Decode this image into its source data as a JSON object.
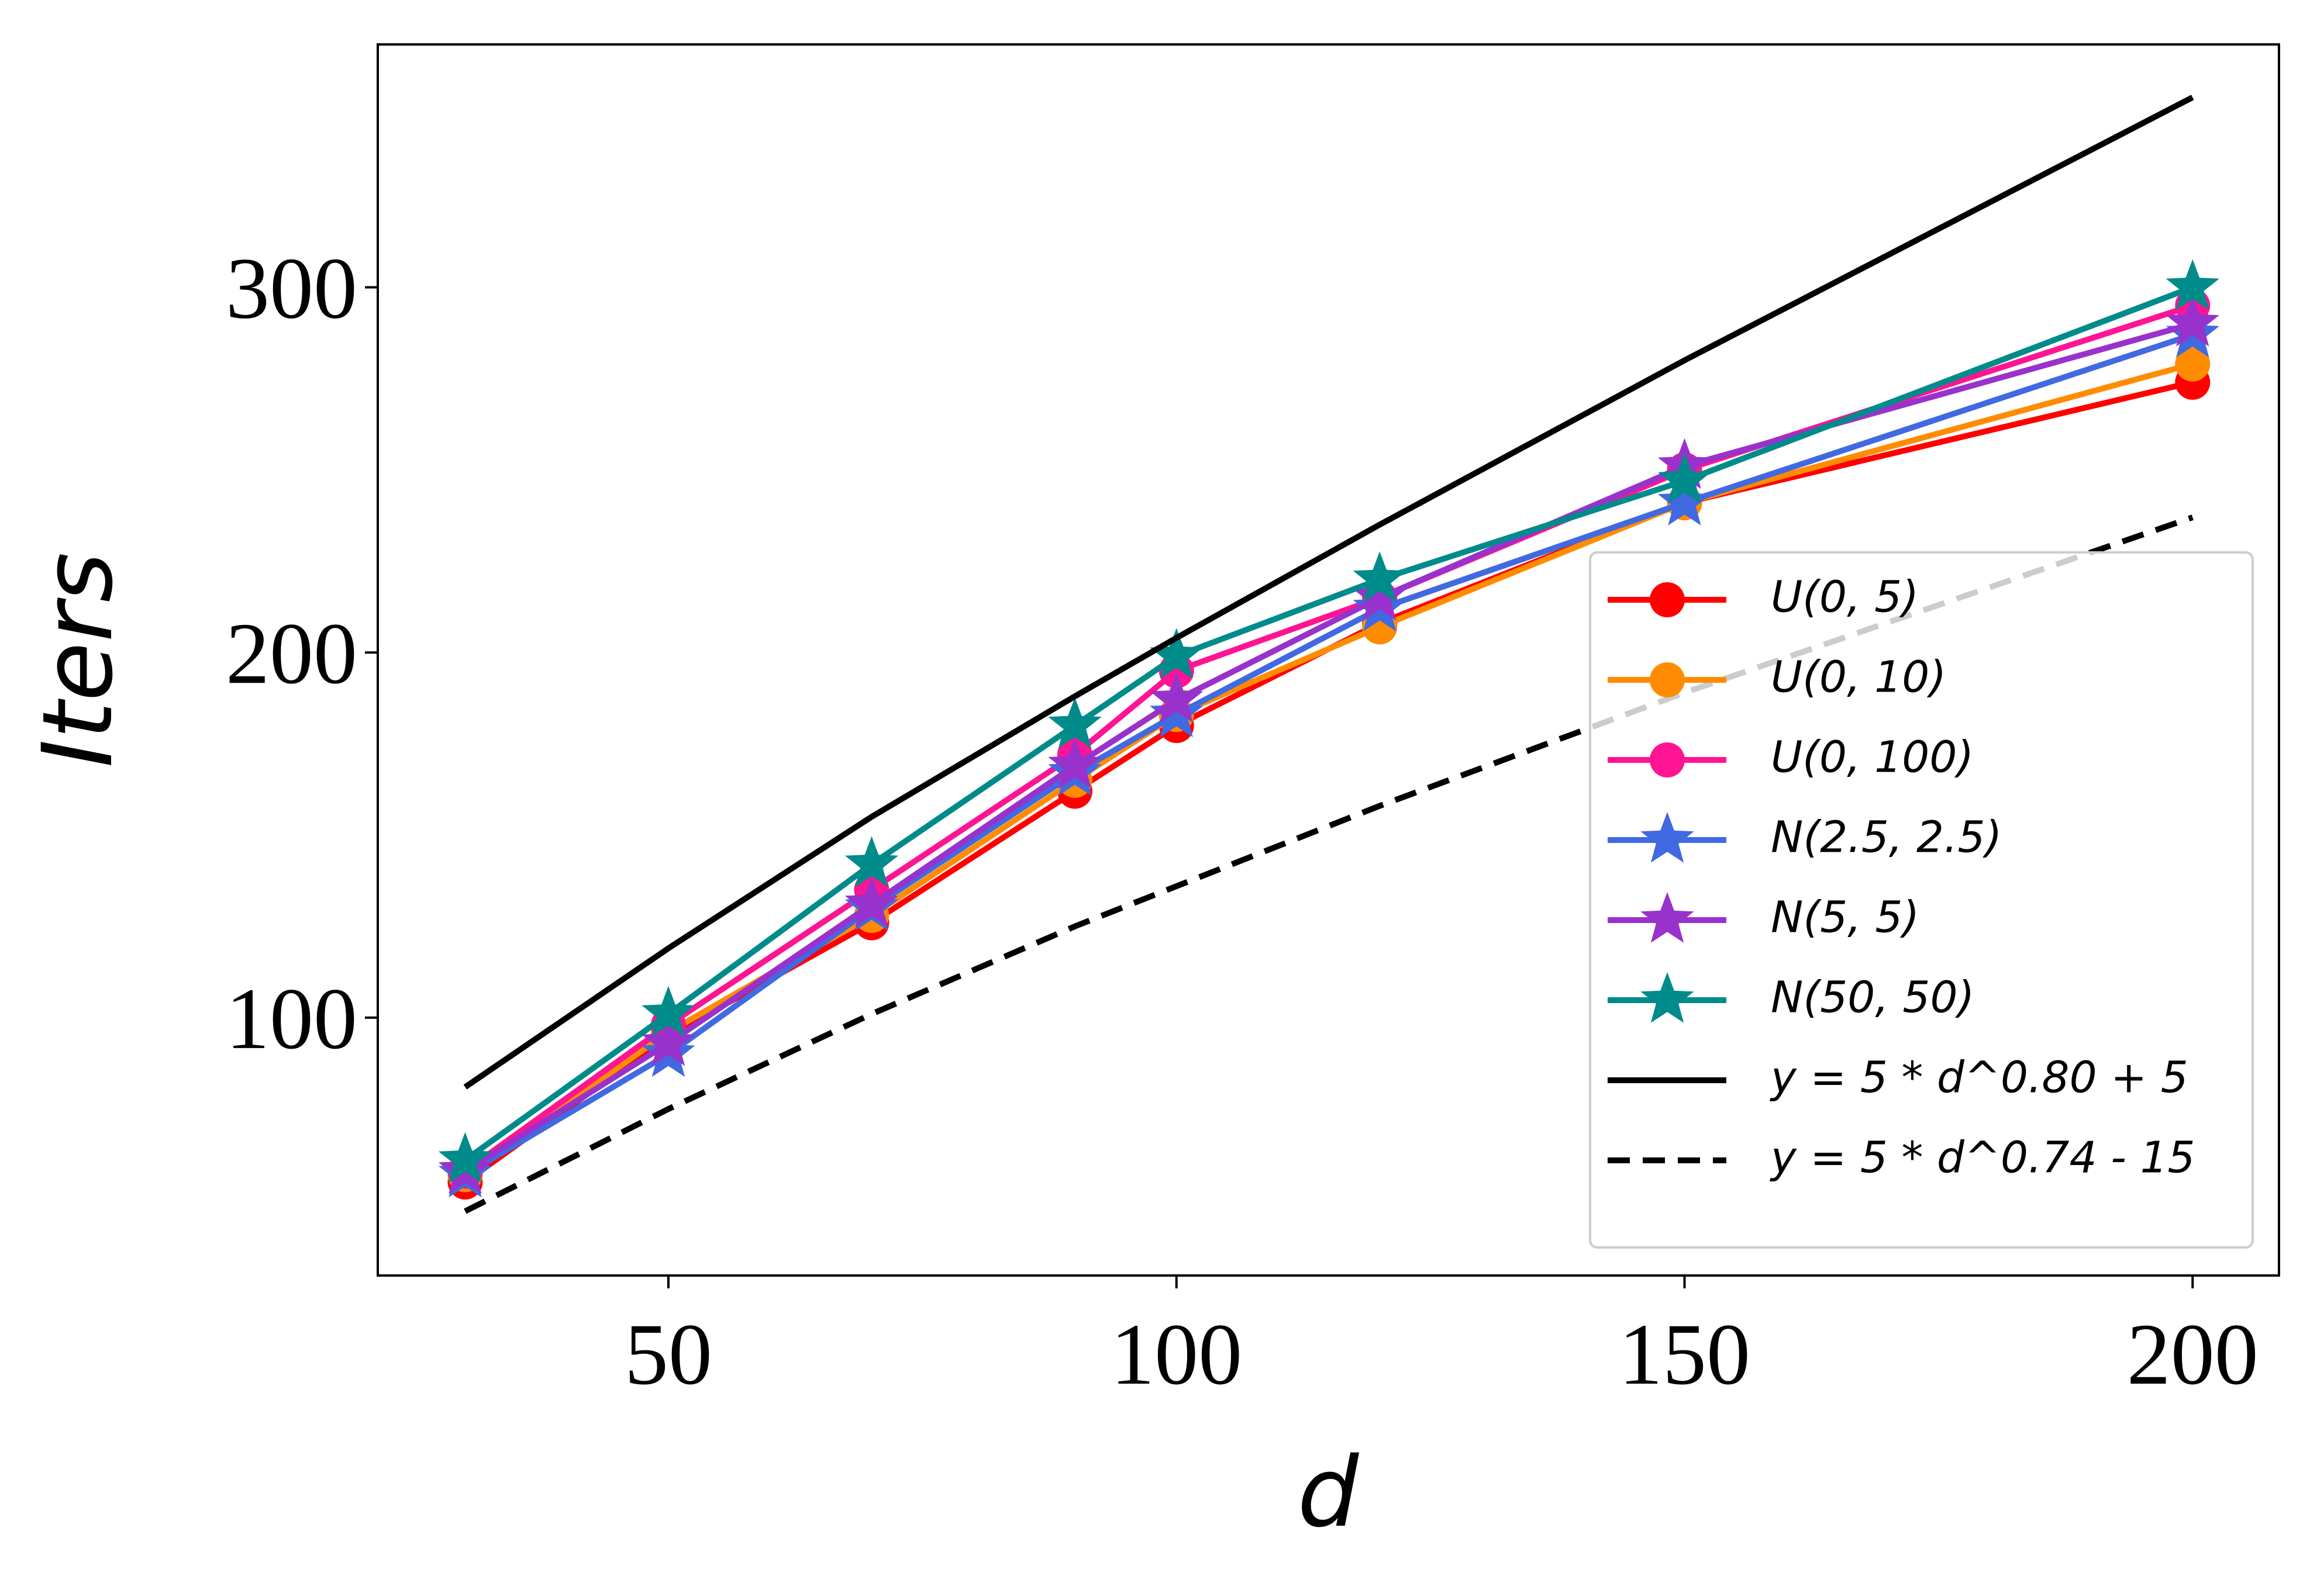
{
  "chart_data": {
    "type": "line",
    "x_label": "d",
    "y_label": "Iters",
    "x": [
      30,
      50,
      70,
      90,
      100,
      120,
      150,
      200
    ],
    "xlim": [
      21.4,
      208.5
    ],
    "ylim": [
      29.4,
      366.5
    ],
    "xticks": [
      50,
      100,
      150,
      200
    ],
    "yticks": [
      100,
      200,
      300
    ],
    "grid": false,
    "legend": "lower right",
    "series": [
      {
        "name": "U(0, 5)",
        "color": "#ff0000",
        "marker": "circle",
        "values": [
          55,
          95,
          126,
          162,
          180,
          208,
          241,
          274
        ]
      },
      {
        "name": "U(0, 10)",
        "color": "#ff8c00",
        "marker": "circle",
        "values": [
          57,
          96,
          128,
          165,
          183,
          207,
          241,
          279
        ]
      },
      {
        "name": "U(0, 100)",
        "color": "#ff1493",
        "marker": "circle",
        "values": [
          58,
          98,
          135,
          172,
          195,
          215,
          250,
          295
        ]
      },
      {
        "name": "N(2.5, 2.5)",
        "color": "#4169e1",
        "marker": "star",
        "values": [
          57,
          90,
          130,
          167,
          183,
          212,
          241,
          287
        ]
      },
      {
        "name": "N(5, 5)",
        "color": "#9932cc",
        "marker": "star",
        "values": [
          58,
          93,
          131,
          169,
          187,
          215,
          251,
          290
        ]
      },
      {
        "name": "N(50, 50)",
        "color": "#008b8b",
        "marker": "star",
        "values": [
          61,
          101,
          142,
          180,
          199,
          220,
          247,
          300
        ]
      },
      {
        "name": "y = 5 * d^0.80 + 5",
        "color": "#000000",
        "dash": "solid",
        "values": [
          81,
          119,
          155,
          188,
          204,
          235,
          280,
          352
        ]
      },
      {
        "name": "y = 5 * d^0.74 - 15",
        "color": "#000000",
        "dash": "dashed",
        "values": [
          47,
          75,
          101,
          125,
          136,
          158,
          189,
          237
        ]
      }
    ]
  }
}
